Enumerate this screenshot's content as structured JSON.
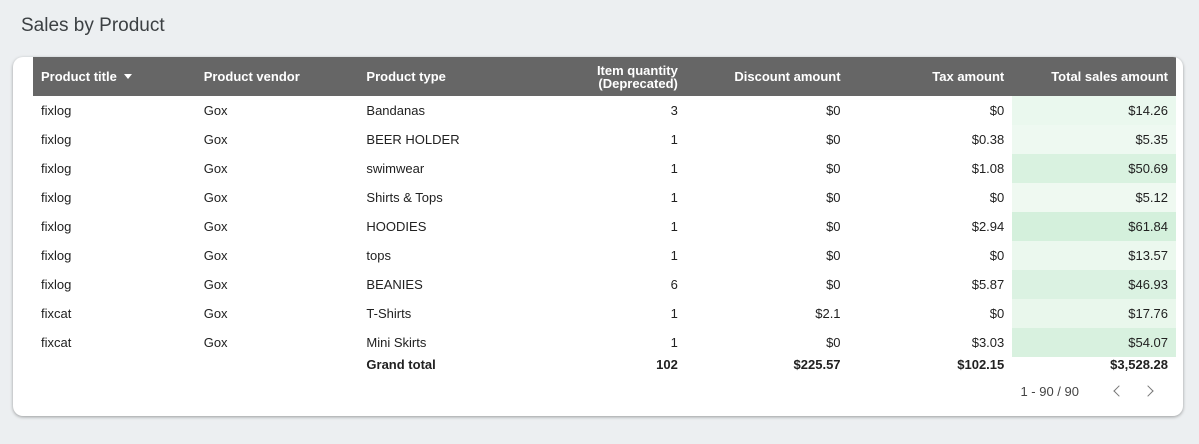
{
  "page": {
    "title": "Sales by Product"
  },
  "table": {
    "headers": {
      "title": "Product title",
      "vendor": "Product vendor",
      "type": "Product type",
      "qty_line1": "Item quantity",
      "qty_line2": "(Deprecated)",
      "discount": "Discount amount",
      "tax": "Tax amount",
      "total": "Total sales amount"
    },
    "rows": [
      {
        "title": "fixlog",
        "vendor": "Gox",
        "type": "Bandanas",
        "qty": "3",
        "discount": "$0",
        "tax": "$0",
        "total": "$14.26"
      },
      {
        "title": "fixlog",
        "vendor": "Gox",
        "type": "BEER HOLDER",
        "qty": "1",
        "discount": "$0",
        "tax": "$0.38",
        "total": "$5.35"
      },
      {
        "title": "fixlog",
        "vendor": "Gox",
        "type": "swimwear",
        "qty": "1",
        "discount": "$0",
        "tax": "$1.08",
        "total": "$50.69"
      },
      {
        "title": "fixlog",
        "vendor": "Gox",
        "type": "Shirts & Tops",
        "qty": "1",
        "discount": "$0",
        "tax": "$0",
        "total": "$5.12"
      },
      {
        "title": "fixlog",
        "vendor": "Gox",
        "type": "HOODIES",
        "qty": "1",
        "discount": "$0",
        "tax": "$2.94",
        "total": "$61.84"
      },
      {
        "title": "fixlog",
        "vendor": "Gox",
        "type": "tops",
        "qty": "1",
        "discount": "$0",
        "tax": "$0",
        "total": "$13.57"
      },
      {
        "title": "fixlog",
        "vendor": "Gox",
        "type": "BEANIES",
        "qty": "6",
        "discount": "$0",
        "tax": "$5.87",
        "total": "$46.93"
      },
      {
        "title": "fixcat",
        "vendor": "Gox",
        "type": "T-Shirts",
        "qty": "1",
        "discount": "$2.1",
        "tax": "$0",
        "total": "$17.76"
      },
      {
        "title": "fixcat",
        "vendor": "Gox",
        "type": "Mini Skirts",
        "qty": "1",
        "discount": "$0",
        "tax": "$3.03",
        "total": "$54.07"
      }
    ],
    "heatmap": {
      "color_low": "#f1faf3",
      "color_high": "#d4f0dc",
      "max_value": 61.84
    },
    "grand_total": {
      "label": "Grand total",
      "qty": "102",
      "discount": "$225.57",
      "tax": "$102.15",
      "total": "$3,528.28"
    },
    "header_color": "#666666"
  },
  "pagination": {
    "range_text": "1 - 90 / 90"
  }
}
